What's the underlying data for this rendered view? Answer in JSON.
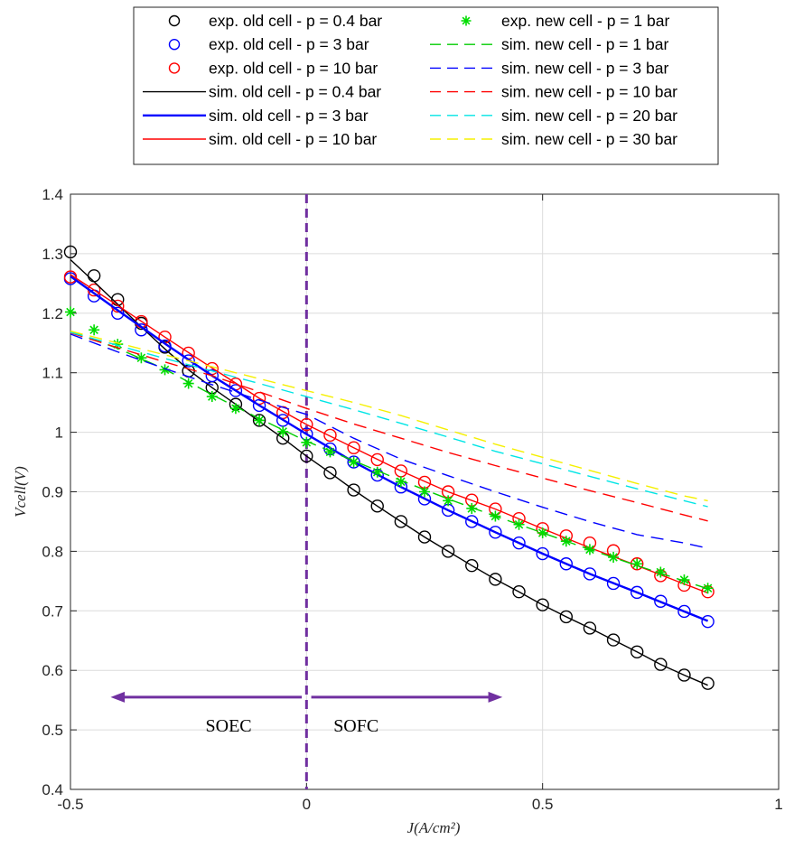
{
  "chart_data": {
    "type": "line",
    "xlabel": "J(A/cm²)",
    "ylabel": "Vcell(V)",
    "xlim": [
      -0.5,
      1
    ],
    "ylim": [
      0.4,
      1.4
    ],
    "xticks": [
      -0.5,
      0,
      0.5,
      1
    ],
    "xtick_labels": [
      "-0.5",
      "0",
      "0.5",
      "1"
    ],
    "yticks": [
      0.4,
      0.5,
      0.6,
      0.7,
      0.8,
      0.9,
      1,
      1.1,
      1.2,
      1.3,
      1.4
    ],
    "ytick_labels": [
      "0.4",
      "0.5",
      "0.6",
      "0.7",
      "0.8",
      "0.9",
      "1",
      "1.1",
      "1.2",
      "1.3",
      "1.4"
    ],
    "grid": true,
    "legend_position": "top, outside plot area, two columns",
    "annotations": [
      {
        "text": "SOEC",
        "x": -0.2,
        "y": 0.555,
        "arrow": "left",
        "color": "#7030A0"
      },
      {
        "text": "SOFC",
        "x": 0.1,
        "y": 0.555,
        "arrow": "right",
        "color": "#7030A0"
      }
    ],
    "vertical_line": {
      "x": 0,
      "style": "dashed",
      "color": "#7030A0"
    },
    "series": [
      {
        "name": "exp. old cell - p = 0.4 bar",
        "kind": "markers",
        "marker": "circle",
        "color": "#000000",
        "x": [
          -0.5,
          -0.45,
          -0.4,
          -0.35,
          -0.3,
          -0.25,
          -0.2,
          -0.15,
          -0.1,
          -0.05,
          0,
          0.05,
          0.1,
          0.15,
          0.2,
          0.25,
          0.3,
          0.35,
          0.4,
          0.45,
          0.5,
          0.55,
          0.6,
          0.65,
          0.7,
          0.75,
          0.8,
          0.85
        ],
        "y": [
          1.303,
          1.263,
          1.223,
          1.183,
          1.143,
          1.103,
          1.075,
          1.047,
          1.02,
          0.99,
          0.96,
          0.932,
          0.903,
          0.876,
          0.85,
          0.824,
          0.8,
          0.776,
          0.753,
          0.732,
          0.71,
          0.69,
          0.671,
          0.651,
          0.631,
          0.61,
          0.592,
          0.578
        ]
      },
      {
        "name": "exp. old cell - p = 3 bar",
        "kind": "markers",
        "marker": "circle",
        "color": "#0000FF",
        "x": [
          -0.5,
          -0.45,
          -0.4,
          -0.35,
          -0.3,
          -0.25,
          -0.2,
          -0.15,
          -0.1,
          -0.05,
          0,
          0.05,
          0.1,
          0.15,
          0.2,
          0.25,
          0.3,
          0.35,
          0.4,
          0.45,
          0.5,
          0.55,
          0.6,
          0.65,
          0.7,
          0.75,
          0.8,
          0.85
        ],
        "y": [
          1.258,
          1.229,
          1.2,
          1.172,
          1.145,
          1.12,
          1.095,
          1.07,
          1.045,
          1.02,
          0.997,
          0.972,
          0.95,
          0.928,
          0.908,
          0.888,
          0.869,
          0.85,
          0.832,
          0.814,
          0.796,
          0.779,
          0.762,
          0.746,
          0.731,
          0.716,
          0.699,
          0.682
        ]
      },
      {
        "name": "exp. old cell - p = 10 bar",
        "kind": "markers",
        "marker": "circle",
        "color": "#FF0000",
        "x": [
          -0.5,
          -0.45,
          -0.4,
          -0.35,
          -0.3,
          -0.25,
          -0.2,
          -0.15,
          -0.1,
          -0.05,
          0,
          0.05,
          0.1,
          0.15,
          0.2,
          0.25,
          0.3,
          0.35,
          0.4,
          0.45,
          0.5,
          0.55,
          0.6,
          0.65,
          0.7,
          0.75,
          0.8,
          0.85
        ],
        "y": [
          1.261,
          1.239,
          1.212,
          1.186,
          1.16,
          1.133,
          1.107,
          1.081,
          1.057,
          1.033,
          1.013,
          0.995,
          0.974,
          0.954,
          0.935,
          0.916,
          0.9,
          0.886,
          0.871,
          0.855,
          0.838,
          0.826,
          0.814,
          0.801,
          0.779,
          0.759,
          0.743,
          0.732
        ]
      },
      {
        "name": "sim. old cell - p = 0.4 bar",
        "kind": "line",
        "style": "solid",
        "color": "#000000",
        "x": [
          -0.5,
          -0.45,
          -0.4,
          -0.35,
          -0.3,
          -0.25,
          -0.2,
          -0.15,
          -0.1,
          -0.05,
          0,
          0.05,
          0.1,
          0.15,
          0.2,
          0.25,
          0.3,
          0.35,
          0.4,
          0.45,
          0.5,
          0.55,
          0.6,
          0.65,
          0.7,
          0.75,
          0.8,
          0.85
        ],
        "y": [
          1.29,
          1.253,
          1.215,
          1.177,
          1.14,
          1.105,
          1.075,
          1.047,
          1.018,
          0.99,
          0.96,
          0.932,
          0.903,
          0.876,
          0.85,
          0.824,
          0.8,
          0.776,
          0.753,
          0.732,
          0.71,
          0.69,
          0.671,
          0.651,
          0.631,
          0.61,
          0.592,
          0.575
        ]
      },
      {
        "name": "sim. old cell - p = 3 bar",
        "kind": "line",
        "style": "solid",
        "color": "#0000FF",
        "x": [
          -0.5,
          -0.4,
          -0.3,
          -0.2,
          -0.1,
          0,
          0.1,
          0.2,
          0.3,
          0.4,
          0.5,
          0.6,
          0.7,
          0.8,
          0.85
        ],
        "y": [
          1.262,
          1.205,
          1.149,
          1.095,
          1.045,
          0.997,
          0.95,
          0.908,
          0.869,
          0.832,
          0.796,
          0.762,
          0.731,
          0.699,
          0.683
        ]
      },
      {
        "name": "sim. old cell - p = 10 bar",
        "kind": "line",
        "style": "solid",
        "color": "#FF0000",
        "x": [
          -0.5,
          -0.4,
          -0.3,
          -0.2,
          -0.1,
          0,
          0.1,
          0.2,
          0.3,
          0.4,
          0.5,
          0.6,
          0.7,
          0.8,
          0.85
        ],
        "y": [
          1.265,
          1.213,
          1.16,
          1.108,
          1.057,
          1.013,
          0.974,
          0.935,
          0.9,
          0.871,
          0.838,
          0.806,
          0.776,
          0.745,
          0.73
        ]
      },
      {
        "name": "exp. new cell - p = 1 bar",
        "kind": "markers",
        "marker": "asterisk",
        "color": "#00DD00",
        "x": [
          -0.5,
          -0.45,
          -0.4,
          -0.35,
          -0.3,
          -0.25,
          -0.2,
          -0.15,
          -0.1,
          -0.05,
          0,
          0.05,
          0.1,
          0.15,
          0.2,
          0.25,
          0.3,
          0.35,
          0.4,
          0.45,
          0.5,
          0.55,
          0.6,
          0.65,
          0.7,
          0.75,
          0.8,
          0.85
        ],
        "y": [
          1.202,
          1.172,
          1.148,
          1.125,
          1.105,
          1.082,
          1.06,
          1.04,
          1.02,
          1.001,
          0.983,
          0.967,
          0.95,
          0.933,
          0.917,
          0.9,
          0.885,
          0.872,
          0.859,
          0.845,
          0.831,
          0.817,
          0.803,
          0.79,
          0.779,
          0.765,
          0.752,
          0.738
        ]
      },
      {
        "name": "sim. new cell - p = 1 bar",
        "kind": "line",
        "style": "dashed",
        "color": "#00CC00",
        "x": [
          -0.5,
          -0.4,
          -0.3,
          -0.2,
          -0.1,
          0,
          0.1,
          0.2,
          0.3,
          0.4,
          0.5,
          0.6,
          0.7,
          0.8,
          0.85
        ],
        "y": [
          1.17,
          1.141,
          1.106,
          1.063,
          1.023,
          0.985,
          0.952,
          0.919,
          0.888,
          0.859,
          0.831,
          0.803,
          0.776,
          0.75,
          0.737
        ]
      },
      {
        "name": "sim. new cell - p = 3 bar",
        "kind": "line",
        "style": "dashed",
        "color": "#0000FF",
        "x": [
          -0.5,
          -0.4,
          -0.3,
          -0.2,
          -0.1,
          0,
          0.1,
          0.2,
          0.3,
          0.4,
          0.5,
          0.6,
          0.7,
          0.8,
          0.85
        ],
        "y": [
          1.165,
          1.135,
          1.107,
          1.08,
          1.054,
          1.03,
          0.99,
          0.955,
          0.927,
          0.9,
          0.874,
          0.85,
          0.828,
          0.814,
          0.805
        ]
      },
      {
        "name": "sim. new cell - p = 10 bar",
        "kind": "line",
        "style": "dashed",
        "color": "#FF0000",
        "x": [
          -0.5,
          -0.4,
          -0.3,
          -0.2,
          -0.1,
          0,
          0.1,
          0.2,
          0.3,
          0.4,
          0.5,
          0.6,
          0.7,
          0.8,
          0.85
        ],
        "y": [
          1.167,
          1.142,
          1.118,
          1.095,
          1.068,
          1.04,
          1.014,
          0.99,
          0.966,
          0.944,
          0.923,
          0.902,
          0.882,
          0.861,
          0.851
        ]
      },
      {
        "name": "sim. new cell - p = 20 bar",
        "kind": "line",
        "style": "dashed",
        "color": "#00E5E5",
        "x": [
          -0.5,
          -0.4,
          -0.3,
          -0.2,
          -0.1,
          0,
          0.1,
          0.2,
          0.3,
          0.4,
          0.5,
          0.6,
          0.7,
          0.8,
          0.85
        ],
        "y": [
          1.168,
          1.146,
          1.124,
          1.103,
          1.082,
          1.06,
          1.038,
          1.015,
          0.992,
          0.968,
          0.947,
          0.926,
          0.905,
          0.885,
          0.875
        ]
      },
      {
        "name": "sim. new cell - p = 30 bar",
        "kind": "line",
        "style": "dashed",
        "color": "#F5F000",
        "x": [
          -0.5,
          -0.4,
          -0.3,
          -0.2,
          -0.1,
          0,
          0.1,
          0.2,
          0.3,
          0.4,
          0.5,
          0.6,
          0.7,
          0.8,
          0.85
        ],
        "y": [
          1.17,
          1.15,
          1.13,
          1.11,
          1.09,
          1.07,
          1.05,
          1.028,
          1.004,
          0.98,
          0.958,
          0.936,
          0.914,
          0.893,
          0.885
        ]
      }
    ]
  },
  "legend": {
    "col1": [
      {
        "label": "exp. old cell - p = 0.4 bar",
        "marker": "circle",
        "color": "#000000"
      },
      {
        "label": "exp. old cell - p = 3 bar",
        "marker": "circle",
        "color": "#0000FF"
      },
      {
        "label": "exp. old cell - p = 10 bar",
        "marker": "circle",
        "color": "#FF0000"
      },
      {
        "label": "sim. old cell - p = 0.4 bar",
        "line": "solid",
        "color": "#000000"
      },
      {
        "label": "sim. old cell - p = 3 bar",
        "line": "solid",
        "color": "#0000FF"
      },
      {
        "label": "sim. old cell - p = 10 bar",
        "line": "solid",
        "color": "#FF0000"
      }
    ],
    "col2": [
      {
        "label": "exp. new cell - p = 1 bar",
        "marker": "asterisk",
        "color": "#00DD00"
      },
      {
        "label": "sim. new cell - p = 1 bar",
        "line": "dashed",
        "color": "#00CC00"
      },
      {
        "label": "sim. new cell - p = 3 bar",
        "line": "dashed",
        "color": "#0000FF"
      },
      {
        "label": "sim. new cell - p = 10 bar",
        "line": "dashed",
        "color": "#FF0000"
      },
      {
        "label": "sim. new cell - p = 20 bar",
        "line": "dashed",
        "color": "#00E5E5"
      },
      {
        "label": "sim. new cell - p = 30 bar",
        "line": "dashed",
        "color": "#F5F000"
      }
    ]
  },
  "colors": {
    "axis": "#262626",
    "grid": "#dcdcdc",
    "annotation": "#7030A0"
  }
}
